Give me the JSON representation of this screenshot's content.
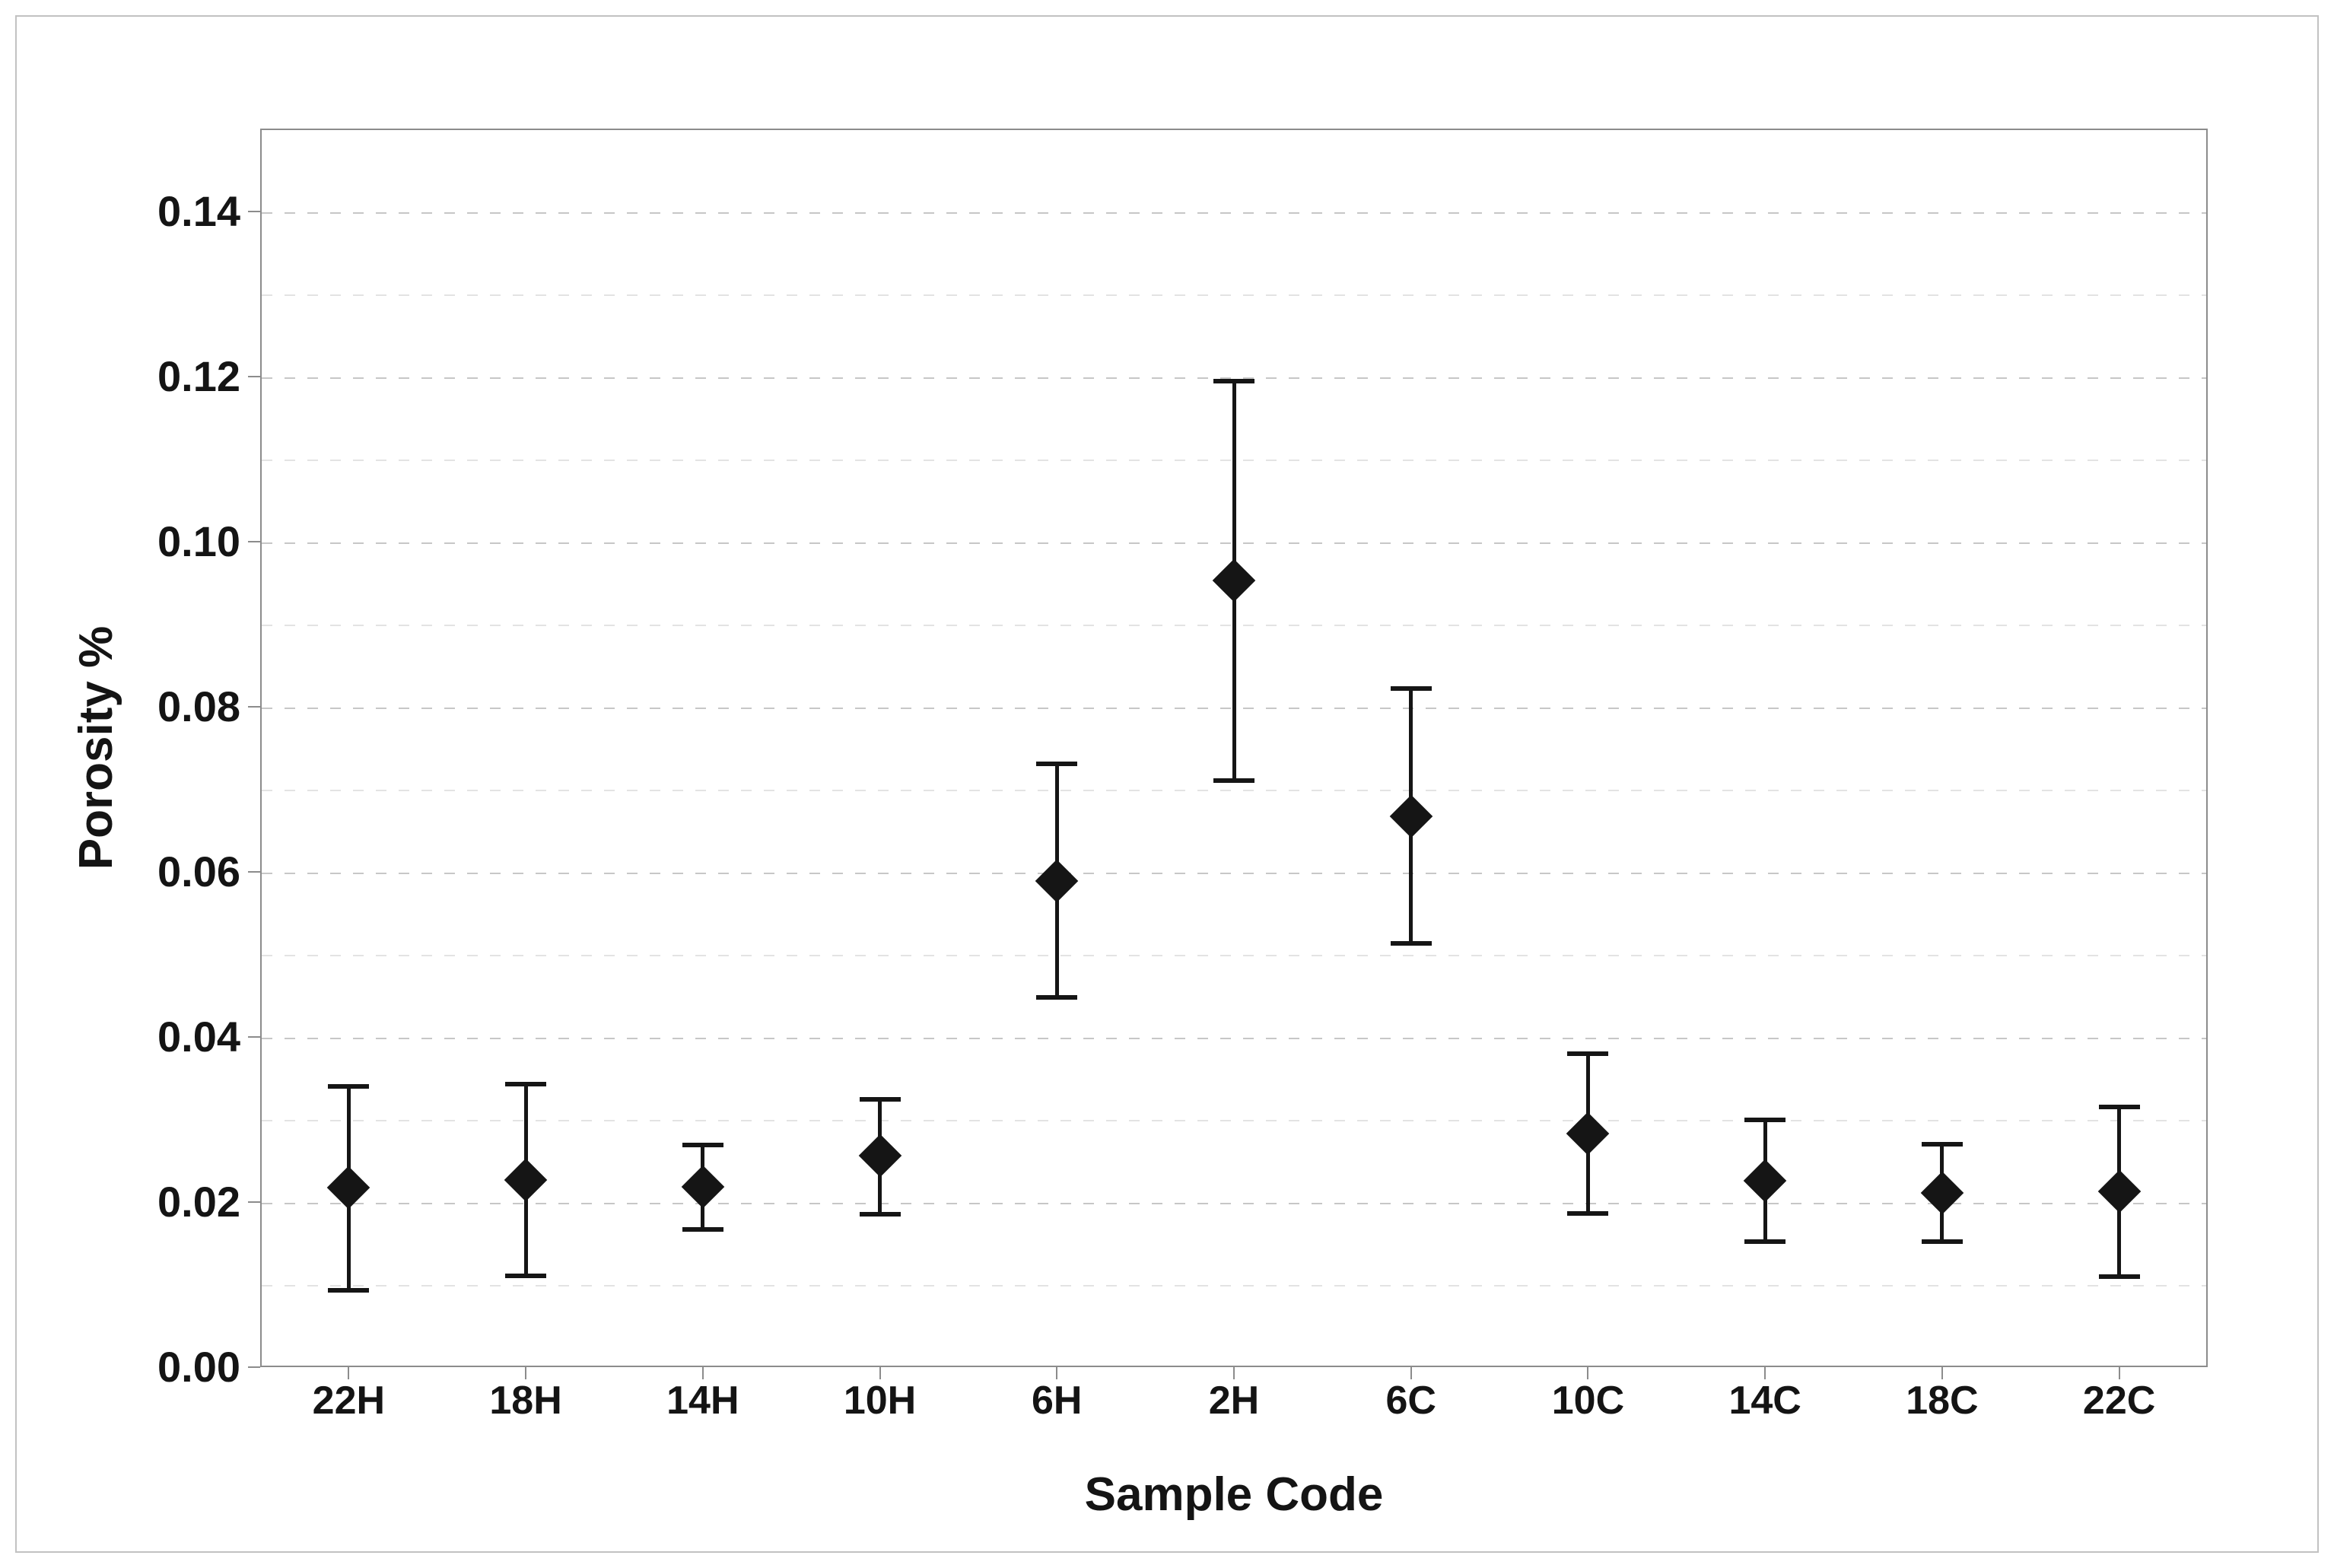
{
  "figure": {
    "background": "#ffffff",
    "border_color": "#c2c2c2",
    "frame_color": "#8c8c8c",
    "marker_color": "#151515",
    "major_grid_color": "#c7c7c7",
    "minor_grid_color": "#e3e3e3"
  },
  "chart_data": {
    "type": "scatter",
    "subtype": "interval-plot-with-error-bars",
    "title": "",
    "xlabel": "Sample Code",
    "ylabel": "Porosity %",
    "categories": [
      "22H",
      "18H",
      "14H",
      "10H",
      "6H",
      "2H",
      "6C",
      "10C",
      "14C",
      "18C",
      "22C"
    ],
    "series": [
      {
        "name": "Porosity",
        "marker": "diamond",
        "means": [
          0.0217,
          0.0227,
          0.0218,
          0.0256,
          0.0589,
          0.0953,
          0.0667,
          0.0283,
          0.0226,
          0.0211,
          0.0213
        ],
        "ci_low": [
          0.0093,
          0.0111,
          0.0167,
          0.0185,
          0.0448,
          0.071,
          0.0513,
          0.0186,
          0.0152,
          0.0152,
          0.011
        ],
        "ci_high": [
          0.034,
          0.0343,
          0.0269,
          0.0324,
          0.0731,
          0.1194,
          0.0822,
          0.038,
          0.0299,
          0.027,
          0.0315
        ]
      }
    ],
    "ylim": [
      0.0,
      0.15
    ],
    "ytick_labels": [
      "0.00",
      "0.02",
      "0.04",
      "0.06",
      "0.08",
      "0.10",
      "0.12",
      "0.14"
    ],
    "ytick_values": [
      0.0,
      0.02,
      0.04,
      0.06,
      0.08,
      0.1,
      0.12,
      0.14
    ],
    "minor_grid_step": 0.01,
    "grid": "horizontal-dashed",
    "legend": "none"
  }
}
